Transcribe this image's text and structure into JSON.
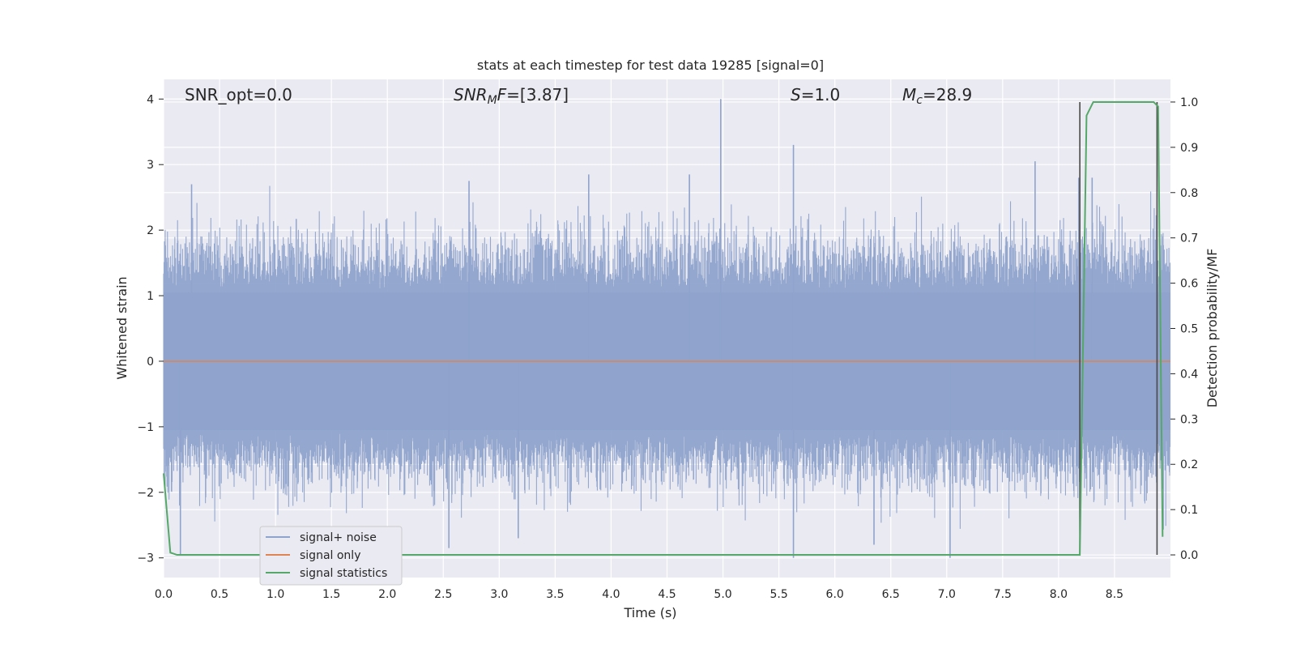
{
  "chart_data": {
    "type": "line",
    "title": "stats at each timestep for test data 19285 [signal=0]",
    "xlabel": "Time (s)",
    "ylabel": "Whitened strain",
    "ylabel_right": "Detection probability/MF",
    "xlim": [
      0.0,
      9.0
    ],
    "ylim": [
      -3.3,
      4.3
    ],
    "ylim_right": [
      -0.05,
      1.05
    ],
    "xticks": [
      "0.0",
      "0.5",
      "1.0",
      "1.5",
      "2.0",
      "2.5",
      "3.0",
      "3.5",
      "4.0",
      "4.5",
      "5.0",
      "5.5",
      "6.0",
      "6.5",
      "7.0",
      "7.5",
      "8.0",
      "8.5"
    ],
    "yticks": [
      "4",
      "3",
      "2",
      "1",
      "0",
      "−1",
      "−2",
      "−3"
    ],
    "yticks_right": [
      "1.0",
      "0.9",
      "0.8",
      "0.7",
      "0.6",
      "0.5",
      "0.4",
      "0.3",
      "0.2",
      "0.1",
      "0.0"
    ],
    "grid": true,
    "legend_position": "lower-left",
    "annotations": {
      "snr_opt": "SNR_opt=0.0",
      "snr_mf_main": "SNR",
      "snr_mf_sub": "M",
      "snr_mf_rest": "F",
      "snr_mf_value": "=[3.87]",
      "s_var": "S",
      "s_value": "=1.0",
      "mc_var": "M",
      "mc_sub": "c",
      "mc_value": "=28.9"
    },
    "series": [
      {
        "name": "signal+ noise",
        "color": "#8fa3cc",
        "description_level": "whitened noise, roughly ±1.7 dense band with spikes up to ~4.0 at t≈4.98",
        "spikes": [
          {
            "t": 4.98,
            "v": 4.0
          },
          {
            "t": 5.63,
            "v": 3.3
          },
          {
            "t": 7.79,
            "v": 3.05
          },
          {
            "t": 8.3,
            "v": 2.8
          },
          {
            "t": 8.18,
            "v": 2.8
          },
          {
            "t": 3.8,
            "v": 2.85
          },
          {
            "t": 4.7,
            "v": 2.85
          },
          {
            "t": 0.25,
            "v": 2.7
          },
          {
            "t": 2.73,
            "v": 2.75
          },
          {
            "t": 5.63,
            "v": -3.0
          },
          {
            "t": 7.03,
            "v": -3.0
          },
          {
            "t": 0.15,
            "v": -2.95
          },
          {
            "t": 2.55,
            "v": -2.85
          },
          {
            "t": 3.17,
            "v": -2.7
          },
          {
            "t": 6.35,
            "v": -2.8
          }
        ]
      },
      {
        "name": "signal only",
        "color": "#dd8452",
        "x": [
          0.0,
          9.0
        ],
        "y": [
          0.0,
          0.0
        ]
      },
      {
        "name": "signal statistics",
        "color": "#55a868",
        "axis": "right",
        "x": [
          0.0,
          0.06,
          0.12,
          0.5,
          8.0,
          8.19,
          8.25,
          8.31,
          8.85,
          8.89,
          8.93
        ],
        "y": [
          0.18,
          0.005,
          0.0,
          0.0,
          0.0,
          0.0,
          0.97,
          1.0,
          1.0,
          0.99,
          0.04
        ]
      }
    ],
    "vlines": [
      {
        "t": 8.19,
        "color": "#4a4a4a"
      },
      {
        "t": 8.88,
        "color": "#4a4a4a"
      }
    ]
  }
}
